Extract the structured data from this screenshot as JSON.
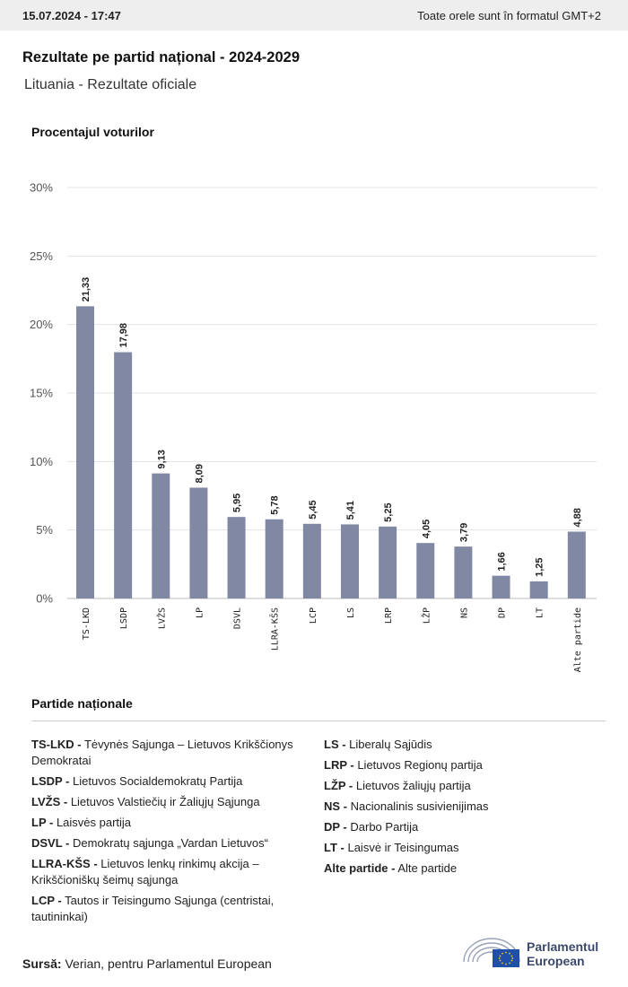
{
  "header": {
    "datetime": "15.07.2024 - 17:47",
    "timezone_note": "Toate orele sunt în formatul GMT+2"
  },
  "page": {
    "title": "Rezultate pe partid național - 2024-2029",
    "subtitle": "Lituania - Rezultate oficiale"
  },
  "chart_data": {
    "type": "bar",
    "ylabel": "Procentajul voturilor",
    "ylim": [
      0,
      30
    ],
    "yticks": [
      "0%",
      "5%",
      "10%",
      "15%",
      "20%",
      "25%",
      "30%"
    ],
    "ytick_values": [
      0,
      5,
      10,
      15,
      20,
      25,
      30
    ],
    "grid": true,
    "bar_color": "#8188a3",
    "categories": [
      "TS-LKD",
      "LSDP",
      "LVŽS",
      "LP",
      "DSVL",
      "LLRA-KŠS",
      "LCP",
      "LS",
      "LRP",
      "LŽP",
      "NS",
      "DP",
      "LT",
      "Alte partide"
    ],
    "values": [
      21.33,
      17.98,
      9.13,
      8.09,
      5.95,
      5.78,
      5.45,
      5.41,
      5.25,
      4.05,
      3.79,
      1.66,
      1.25,
      4.88
    ],
    "value_labels": [
      "21,33",
      "17,98",
      "9,13",
      "8,09",
      "5,95",
      "5,78",
      "5,45",
      "5,41",
      "5,25",
      "4,05",
      "3,79",
      "1,66",
      "1,25",
      "4,88"
    ]
  },
  "legend": {
    "title": "Partide naționale",
    "left": [
      {
        "abbr": "TS-LKD -",
        "name": "Tėvynės Sąjunga – Lietuvos Krikščionys Demokratai"
      },
      {
        "abbr": "LSDP -",
        "name": "Lietuvos Socialdemokratų Partija"
      },
      {
        "abbr": "LVŽS -",
        "name": "Lietuvos Valstiečių ir Žaliųjų Sąjunga"
      },
      {
        "abbr": "LP -",
        "name": "Laisvės partija"
      },
      {
        "abbr": "DSVL -",
        "name": "Demokratų sąjunga „Vardan Lietuvos“"
      },
      {
        "abbr": "LLRA-KŠS -",
        "name": "Lietuvos lenkų rinkimų akcija – Krikščioniškų šeimų sąjunga"
      },
      {
        "abbr": "LCP -",
        "name": "Tautos ir Teisingumo Sąjunga (centristai, tautininkai)"
      }
    ],
    "right": [
      {
        "abbr": "LS -",
        "name": "Liberalų Sąjūdis"
      },
      {
        "abbr": "LRP -",
        "name": "Lietuvos Regionų partija"
      },
      {
        "abbr": "LŽP -",
        "name": "Lietuvos žaliųjų partija"
      },
      {
        "abbr": "NS -",
        "name": "Nacionalinis susivienijimas"
      },
      {
        "abbr": "DP -",
        "name": "Darbo Partija"
      },
      {
        "abbr": "LT -",
        "name": "Laisvė ir Teisingumas"
      },
      {
        "abbr": "Alte partide -",
        "name": "Alte partide"
      }
    ]
  },
  "footer": {
    "source_label": "Sursă:",
    "source_text": "Verian, pentru Parlamentul European",
    "logo_line1": "Parlamentul",
    "logo_line2": "European",
    "logo_icon": "european-parliament-hemicycle-icon"
  }
}
